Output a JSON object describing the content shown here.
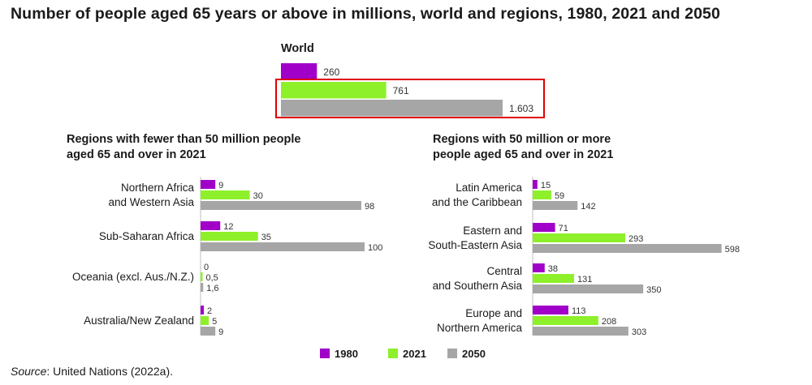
{
  "title": "Number of people aged 65 years or above in millions, world and regions, 1980, 2021 and 2050",
  "source": {
    "label": "Source",
    "text": ": United Nations (2022a)."
  },
  "colors": {
    "y1980": "#a000c8",
    "y2021": "#8ef02a",
    "y2050": "#a6a6a6",
    "highlight": "#e00000"
  },
  "chart_data": [
    {
      "type": "bar",
      "orientation": "horizontal",
      "title": "World",
      "categories": [
        "World"
      ],
      "series": [
        {
          "name": "1980",
          "values": [
            260
          ],
          "labels": [
            "260"
          ]
        },
        {
          "name": "2021",
          "values": [
            761
          ],
          "labels": [
            "761"
          ]
        },
        {
          "name": "2050",
          "values": [
            1603
          ],
          "labels": [
            "1.603"
          ]
        }
      ],
      "highlight": "2021 and 2050 bars outlined in red"
    },
    {
      "type": "bar",
      "orientation": "horizontal",
      "title": "Regions with fewer than 50 million people aged 65 and over in 2021",
      "categories": [
        "Northern Africa and Western Asia",
        "Sub-Saharan Africa",
        "Oceania (excl. Aus./N.Z.)",
        "Australia/New Zealand"
      ],
      "category_lines": [
        [
          "Northern Africa",
          "and Western Asia"
        ],
        [
          "Sub-Saharan Africa"
        ],
        [
          "Oceania (excl. Aus./N.Z.)"
        ],
        [
          "Australia/New Zealand"
        ]
      ],
      "series": [
        {
          "name": "1980",
          "values": [
            9,
            12,
            0,
            2
          ],
          "labels": [
            "9",
            "12",
            "0",
            "2"
          ]
        },
        {
          "name": "2021",
          "values": [
            30,
            35,
            0.5,
            5
          ],
          "labels": [
            "30",
            "35",
            "0,5",
            "5"
          ]
        },
        {
          "name": "2050",
          "values": [
            98,
            100,
            1.6,
            9
          ],
          "labels": [
            "98",
            "100",
            "1,6",
            "9"
          ]
        }
      ]
    },
    {
      "type": "bar",
      "orientation": "horizontal",
      "title": "Regions with 50 million or more people aged 65 and over  in 2021",
      "categories": [
        "Latin America and the Caribbean",
        "Eastern and South-Eastern Asia",
        "Central and Southern Asia",
        "Europe and Northern America"
      ],
      "category_lines": [
        [
          "Latin America",
          "and the Caribbean"
        ],
        [
          "Eastern and",
          "South-Eastern Asia"
        ],
        [
          "Central",
          "and Southern Asia"
        ],
        [
          "Europe and",
          "Northern America"
        ]
      ],
      "series": [
        {
          "name": "1980",
          "values": [
            15,
            71,
            38,
            113
          ],
          "labels": [
            "15",
            "71",
            "38",
            "113"
          ]
        },
        {
          "name": "2021",
          "values": [
            59,
            293,
            131,
            208
          ],
          "labels": [
            "59",
            "293",
            "131",
            "208"
          ]
        },
        {
          "name": "2050",
          "values": [
            142,
            598,
            350,
            303
          ],
          "labels": [
            "142",
            "598",
            "350",
            "303"
          ]
        }
      ]
    }
  ],
  "subtitles": {
    "left": [
      "Regions with fewer than 50 million people",
      "aged 65 and over in 2021"
    ],
    "right": [
      "Regions with 50 million or more",
      "people aged 65 and over  in 2021"
    ]
  },
  "legend": {
    "position": "bottom-center",
    "items": [
      "1980",
      "2021",
      "2050"
    ]
  }
}
